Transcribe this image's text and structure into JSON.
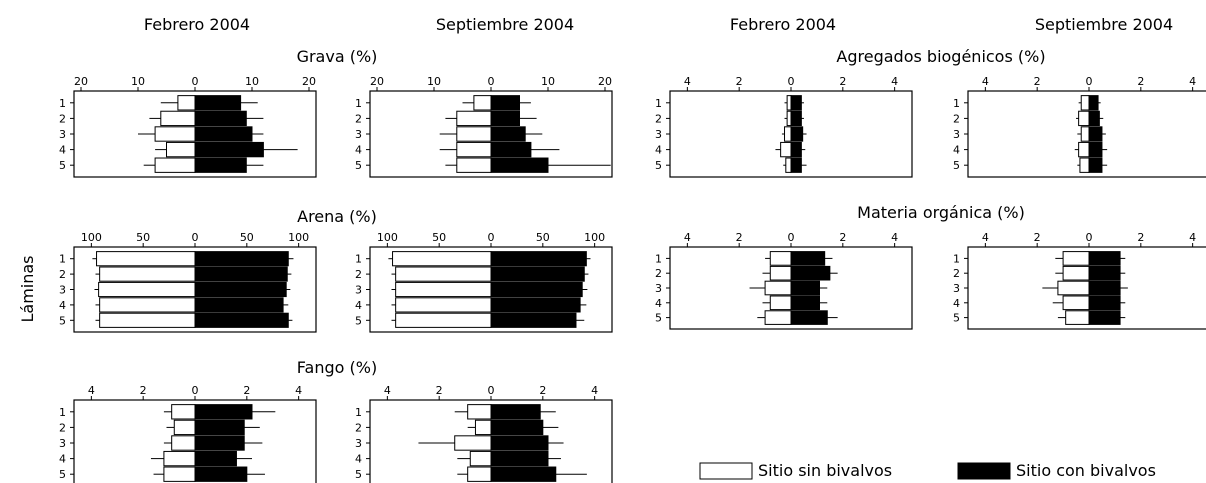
{
  "column_headers": [
    "Febrero 2004",
    "Septiembre 2004",
    "Febrero 2004",
    "Septiembre 2004"
  ],
  "y_axis_label": "Láminas",
  "legend": [
    {
      "label": "Sitio sin bivalvos",
      "color": "#ffffff"
    },
    {
      "label": "Sitio con bivalvos",
      "color": "#000000"
    }
  ],
  "colors": {
    "sin_bivalvos": "#ffffff",
    "con_bivalvos": "#000000",
    "frame": "#000000"
  },
  "chart_data": [
    {
      "type": "bar",
      "orientation": "horizontal-back-to-back",
      "title": "Grava (%)",
      "period": "Febrero 2004",
      "categories": [
        "1",
        "2",
        "3",
        "4",
        "5"
      ],
      "xlim": [
        -20,
        20
      ],
      "ticks": [
        20,
        10,
        0,
        10,
        20
      ],
      "series": [
        {
          "name": "Sitio sin bivalvos",
          "values": [
            3,
            6,
            7,
            5,
            7
          ],
          "errors": [
            3,
            2,
            3,
            2,
            2
          ]
        },
        {
          "name": "Sitio con bivalvos",
          "values": [
            8,
            9,
            10,
            12,
            9
          ],
          "errors": [
            3,
            3,
            2,
            6,
            3
          ]
        }
      ]
    },
    {
      "type": "bar",
      "orientation": "horizontal-back-to-back",
      "title": "Grava (%)",
      "period": "Septiembre 2004",
      "categories": [
        "1",
        "2",
        "3",
        "4",
        "5"
      ],
      "xlim": [
        -20,
        20
      ],
      "ticks": [
        20,
        10,
        0,
        10,
        20
      ],
      "series": [
        {
          "name": "Sitio sin bivalvos",
          "values": [
            3,
            6,
            6,
            6,
            6
          ],
          "errors": [
            2,
            2,
            3,
            3,
            2
          ]
        },
        {
          "name": "Sitio con bivalvos",
          "values": [
            5,
            5,
            6,
            7,
            10
          ],
          "errors": [
            2,
            3,
            3,
            5,
            11
          ]
        }
      ]
    },
    {
      "type": "bar",
      "orientation": "horizontal-back-to-back",
      "title": "Arena (%)",
      "period": "Febrero 2004",
      "categories": [
        "1",
        "2",
        "3",
        "4",
        "5"
      ],
      "xlim": [
        -110,
        110
      ],
      "ticks": [
        100,
        50,
        0,
        50,
        100
      ],
      "series": [
        {
          "name": "Sitio sin bivalvos",
          "values": [
            95,
            92,
            93,
            92,
            92
          ],
          "errors": [
            4,
            4,
            4,
            4,
            4
          ]
        },
        {
          "name": "Sitio con bivalvos",
          "values": [
            90,
            89,
            88,
            85,
            90
          ],
          "errors": [
            5,
            4,
            4,
            5,
            4
          ]
        }
      ]
    },
    {
      "type": "bar",
      "orientation": "horizontal-back-to-back",
      "title": "Arena (%)",
      "period": "Septiembre 2004",
      "categories": [
        "1",
        "2",
        "3",
        "4",
        "5"
      ],
      "xlim": [
        -110,
        110
      ],
      "ticks": [
        100,
        50,
        0,
        50,
        100
      ],
      "series": [
        {
          "name": "Sitio sin bivalvos",
          "values": [
            95,
            92,
            92,
            92,
            92
          ],
          "errors": [
            4,
            4,
            4,
            4,
            4
          ]
        },
        {
          "name": "Sitio con bivalvos",
          "values": [
            92,
            90,
            88,
            86,
            82
          ],
          "errors": [
            4,
            4,
            5,
            6,
            8
          ]
        }
      ]
    },
    {
      "type": "bar",
      "orientation": "horizontal-back-to-back",
      "title": "Fango (%)",
      "period": "Febrero 2004",
      "categories": [
        "1",
        "2",
        "3",
        "4",
        "5"
      ],
      "xlim": [
        -4.4,
        4.4
      ],
      "ticks": [
        4,
        2,
        0,
        2,
        4
      ],
      "series": [
        {
          "name": "Sitio sin bivalvos",
          "values": [
            0.9,
            0.8,
            0.9,
            1.2,
            1.2
          ],
          "errors": [
            0.3,
            0.3,
            0.3,
            0.5,
            0.4
          ]
        },
        {
          "name": "Sitio con bivalvos",
          "values": [
            2.2,
            1.9,
            1.9,
            1.6,
            2.0
          ],
          "errors": [
            0.9,
            0.6,
            0.7,
            0.6,
            0.7
          ]
        }
      ]
    },
    {
      "type": "bar",
      "orientation": "horizontal-back-to-back",
      "title": "Fango (%)",
      "period": "Septiembre 2004",
      "categories": [
        "1",
        "2",
        "3",
        "4",
        "5"
      ],
      "xlim": [
        -4.4,
        4.4
      ],
      "ticks": [
        4,
        2,
        0,
        2,
        4
      ],
      "series": [
        {
          "name": "Sitio sin bivalvos",
          "values": [
            0.9,
            0.6,
            1.4,
            0.8,
            0.9
          ],
          "errors": [
            0.5,
            0.3,
            1.4,
            0.5,
            0.4
          ]
        },
        {
          "name": "Sitio con bivalvos",
          "values": [
            1.9,
            2.0,
            2.2,
            2.2,
            2.5
          ],
          "errors": [
            0.6,
            0.6,
            0.6,
            0.5,
            1.2
          ]
        }
      ]
    },
    {
      "type": "bar",
      "orientation": "horizontal-back-to-back",
      "title": "Agregados biogénicos (%)",
      "period": "Febrero 2004",
      "categories": [
        "1",
        "2",
        "3",
        "4",
        "5"
      ],
      "xlim": [
        -4.4,
        4.4
      ],
      "ticks": [
        4,
        2,
        0,
        2,
        4
      ],
      "series": [
        {
          "name": "Sitio sin bivalvos",
          "values": [
            0.15,
            0.15,
            0.25,
            0.4,
            0.2
          ],
          "errors": [
            0.1,
            0.1,
            0.1,
            0.2,
            0.1
          ]
        },
        {
          "name": "Sitio con bivalvos",
          "values": [
            0.4,
            0.4,
            0.45,
            0.4,
            0.4
          ],
          "errors": [
            0.1,
            0.1,
            0.15,
            0.15,
            0.2
          ]
        }
      ]
    },
    {
      "type": "bar",
      "orientation": "horizontal-back-to-back",
      "title": "Agregados biogénicos (%)",
      "period": "Septiembre 2004",
      "categories": [
        "1",
        "2",
        "3",
        "4",
        "5"
      ],
      "xlim": [
        -4.4,
        4.4
      ],
      "ticks": [
        4,
        2,
        0,
        2,
        4
      ],
      "series": [
        {
          "name": "Sitio sin bivalvos",
          "values": [
            0.3,
            0.4,
            0.3,
            0.4,
            0.35
          ],
          "errors": [
            0.1,
            0.1,
            0.15,
            0.15,
            0.1
          ]
        },
        {
          "name": "Sitio con bivalvos",
          "values": [
            0.35,
            0.4,
            0.5,
            0.5,
            0.5
          ],
          "errors": [
            0.1,
            0.15,
            0.15,
            0.2,
            0.2
          ]
        }
      ]
    },
    {
      "type": "bar",
      "orientation": "horizontal-back-to-back",
      "title": "Materia orgánica (%)",
      "period": "Febrero 2004",
      "categories": [
        "1",
        "2",
        "3",
        "4",
        "5"
      ],
      "xlim": [
        -4.4,
        4.4
      ],
      "ticks": [
        4,
        2,
        0,
        2,
        4
      ],
      "series": [
        {
          "name": "Sitio sin bivalvos",
          "values": [
            0.8,
            0.8,
            1.0,
            0.8,
            1.0
          ],
          "errors": [
            0.2,
            0.3,
            0.6,
            0.3,
            0.3
          ]
        },
        {
          "name": "Sitio con bivalvos",
          "values": [
            1.3,
            1.5,
            1.1,
            1.1,
            1.4
          ],
          "errors": [
            0.3,
            0.3,
            0.3,
            0.3,
            0.4
          ]
        }
      ]
    },
    {
      "type": "bar",
      "orientation": "horizontal-back-to-back",
      "title": "Materia orgánica (%)",
      "period": "Septiembre 2004",
      "categories": [
        "1",
        "2",
        "3",
        "4",
        "5"
      ],
      "xlim": [
        -4.4,
        4.4
      ],
      "ticks": [
        4,
        2,
        0,
        2,
        4
      ],
      "series": [
        {
          "name": "Sitio sin bivalvos",
          "values": [
            1.0,
            1.0,
            1.2,
            1.0,
            0.9
          ],
          "errors": [
            0.3,
            0.3,
            0.6,
            0.4,
            0.3
          ]
        },
        {
          "name": "Sitio con bivalvos",
          "values": [
            1.2,
            1.2,
            1.2,
            1.2,
            1.2
          ],
          "errors": [
            0.2,
            0.2,
            0.3,
            0.2,
            0.2
          ]
        }
      ]
    }
  ]
}
